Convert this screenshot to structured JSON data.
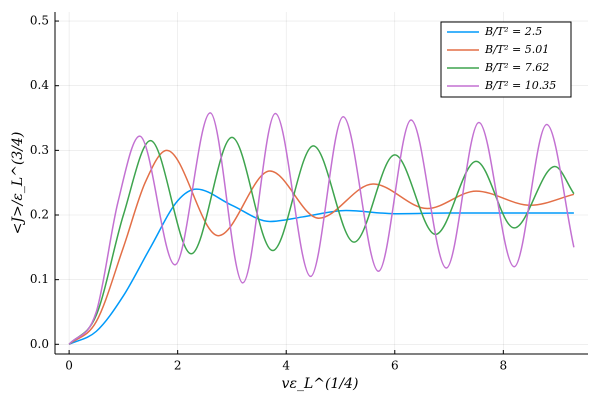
{
  "chart_data": {
    "type": "line",
    "x_label": "vε_L^(1/4)",
    "y_label": "<J>/ε_L^(3/4)",
    "xlim": [
      -0.26,
      9.56
    ],
    "ylim": [
      -0.015,
      0.514
    ],
    "xticks": [
      0,
      2,
      4,
      6,
      8
    ],
    "yticks": [
      {
        "value": 0,
        "label": "0.0"
      },
      0.1,
      0.2,
      0.3,
      0.4,
      0.5
    ],
    "grid": true,
    "legend": "top-right",
    "series": [
      {
        "name": "B/T² = 2.5",
        "color": "#009afa",
        "x": [
          0,
          0.5,
          1,
          1.5,
          2,
          2.35,
          3,
          3.7,
          4.3,
          5.1,
          6,
          7,
          8,
          9.3
        ],
        "values": [
          0,
          0.02,
          0.075,
          0.15,
          0.222,
          0.24,
          0.215,
          0.19,
          0.197,
          0.207,
          0.202,
          0.203,
          0.203,
          0.203
        ]
      },
      {
        "name": "B/T² = 5.01",
        "color": "#e36f47",
        "x": [
          0,
          0.5,
          1,
          1.4,
          1.8,
          2.75,
          3.7,
          4.6,
          5.6,
          6.6,
          7.5,
          8.5,
          9.3
        ],
        "values": [
          0,
          0.035,
          0.15,
          0.25,
          0.3,
          0.168,
          0.268,
          0.195,
          0.248,
          0.21,
          0.237,
          0.215,
          0.232
        ]
      },
      {
        "name": "B/T² = 7.62",
        "color": "#3ea44e",
        "x": [
          0,
          0.5,
          1,
          1.5,
          2.25,
          3,
          3.75,
          4.5,
          5.25,
          6,
          6.75,
          7.5,
          8.2,
          8.95,
          9.3
        ],
        "values": [
          0,
          0.045,
          0.2,
          0.315,
          0.14,
          0.32,
          0.145,
          0.307,
          0.158,
          0.293,
          0.17,
          0.283,
          0.18,
          0.275,
          0.233
        ]
      },
      {
        "name": "B/T² = 10.35",
        "color": "#c371d2",
        "x": [
          0,
          0.5,
          0.9,
          1.3,
          1.95,
          2.6,
          3.2,
          3.8,
          4.45,
          5.05,
          5.7,
          6.3,
          6.95,
          7.55,
          8.2,
          8.8,
          9.3
        ],
        "values": [
          0,
          0.05,
          0.22,
          0.322,
          0.123,
          0.358,
          0.095,
          0.357,
          0.105,
          0.352,
          0.113,
          0.347,
          0.118,
          0.343,
          0.12,
          0.34,
          0.15
        ]
      }
    ]
  }
}
